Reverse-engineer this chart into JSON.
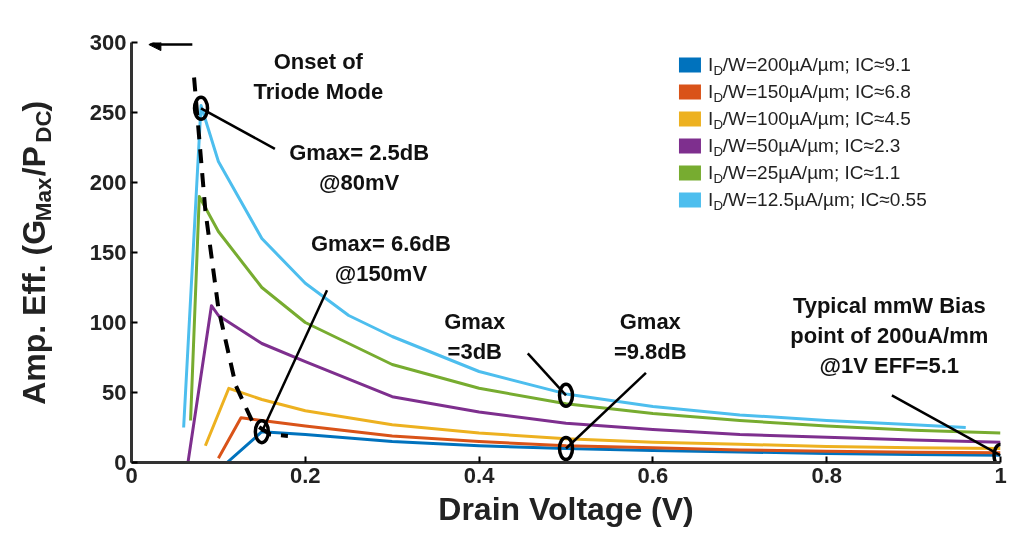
{
  "chart_data": {
    "type": "line",
    "xlabel": "Drain Voltage (V)",
    "ylabel": "Amp. Eff. (G$_{Max}$/P$_{DC}$)",
    "xlim": [
      0,
      1
    ],
    "ylim": [
      0,
      300
    ],
    "xticks": [
      0,
      0.2,
      0.4,
      0.6,
      0.8,
      1
    ],
    "yticks": [
      0,
      50,
      100,
      150,
      200,
      250,
      300
    ],
    "legend": "top right",
    "series": [
      {
        "name": "I$_{D}$/W=200µA/µm; IC≈9.1",
        "color": "#0072bd",
        "x": [
          0.11,
          0.15,
          0.2,
          0.3,
          0.4,
          0.5,
          0.6,
          0.7,
          0.8,
          0.9,
          1.0
        ],
        "values": [
          0,
          22,
          20,
          15,
          12,
          10,
          8.5,
          7.5,
          6.5,
          5.8,
          5.1
        ]
      },
      {
        "name": "I$_{D}$/W=150µA/µm; IC≈6.8",
        "color": "#d95319",
        "x": [
          0.1,
          0.126,
          0.15,
          0.2,
          0.3,
          0.4,
          0.5,
          0.6,
          0.7,
          0.8,
          0.9,
          1.0
        ],
        "values": [
          3,
          32,
          30,
          26,
          19,
          15,
          12,
          10.5,
          9,
          8,
          7.3,
          7
        ]
      },
      {
        "name": "I$_{D}$/W=100µA/µm; IC≈4.5",
        "color": "#edb120",
        "x": [
          0.085,
          0.112,
          0.15,
          0.2,
          0.3,
          0.4,
          0.5,
          0.6,
          0.7,
          0.8,
          0.9,
          1.0
        ],
        "values": [
          12,
          53,
          45,
          37,
          27,
          21,
          17,
          14.5,
          13,
          11.5,
          10.5,
          10
        ]
      },
      {
        "name": "I$_{D}$/W=50µA/µm; IC≈2.3",
        "color": "#7e2f8e",
        "x": [
          0.065,
          0.092,
          0.1,
          0.15,
          0.2,
          0.3,
          0.4,
          0.5,
          0.6,
          0.7,
          0.8,
          0.9,
          1.0
        ],
        "values": [
          0,
          112,
          105,
          85,
          72,
          47,
          36,
          28,
          23.5,
          20,
          18,
          16,
          14.5
        ]
      },
      {
        "name": "I$_{D}$/W=25µA/µm; IC≈1.1",
        "color": "#77ac30",
        "x": [
          0.068,
          0.078,
          0.1,
          0.15,
          0.2,
          0.3,
          0.4,
          0.5,
          0.6,
          0.7,
          0.8,
          0.9,
          1.0
        ],
        "values": [
          30,
          190,
          165,
          125,
          100,
          70,
          53,
          42,
          35,
          30,
          26,
          23,
          21
        ]
      },
      {
        "name": "I$_{D}$/W=12.5µA/µm; IC≈0.55",
        "color": "#4dbeee",
        "x": [
          0.06,
          0.08,
          0.1,
          0.15,
          0.2,
          0.25,
          0.3,
          0.4,
          0.5,
          0.6,
          0.7,
          0.8,
          0.9,
          0.96
        ],
        "values": [
          25,
          255,
          215,
          160,
          128,
          105,
          90,
          65,
          49,
          40,
          34,
          30,
          27,
          25
        ]
      },
      {
        "color": "#000000",
        "line_style": "dashed",
        "x": [
          0.072,
          0.085,
          0.1,
          0.12,
          0.14,
          0.16,
          0.18
        ],
        "values": [
          275,
          180,
          110,
          55,
          28,
          20,
          19
        ]
      }
    ],
    "annotations": [
      "Onset of\nTriode Mode",
      {
        "text": "Gmax= 2.5dB\n@80mV",
        "x": 0.08,
        "y": 253
      },
      {
        "text": "Gmax= 6.6dB\n@150mV",
        "x": 0.15,
        "y": 22
      },
      {
        "text": "Gmax\n=3dB",
        "x": 0.5,
        "y": 48
      },
      {
        "text": "Gmax\n=9.8dB",
        "x": 0.5,
        "y": 10
      },
      {
        "text": "Typical mmW Bias\npoint of 200uA/mm\n@1V EFF=5.1",
        "x": 1.0,
        "y": 5
      }
    ]
  }
}
